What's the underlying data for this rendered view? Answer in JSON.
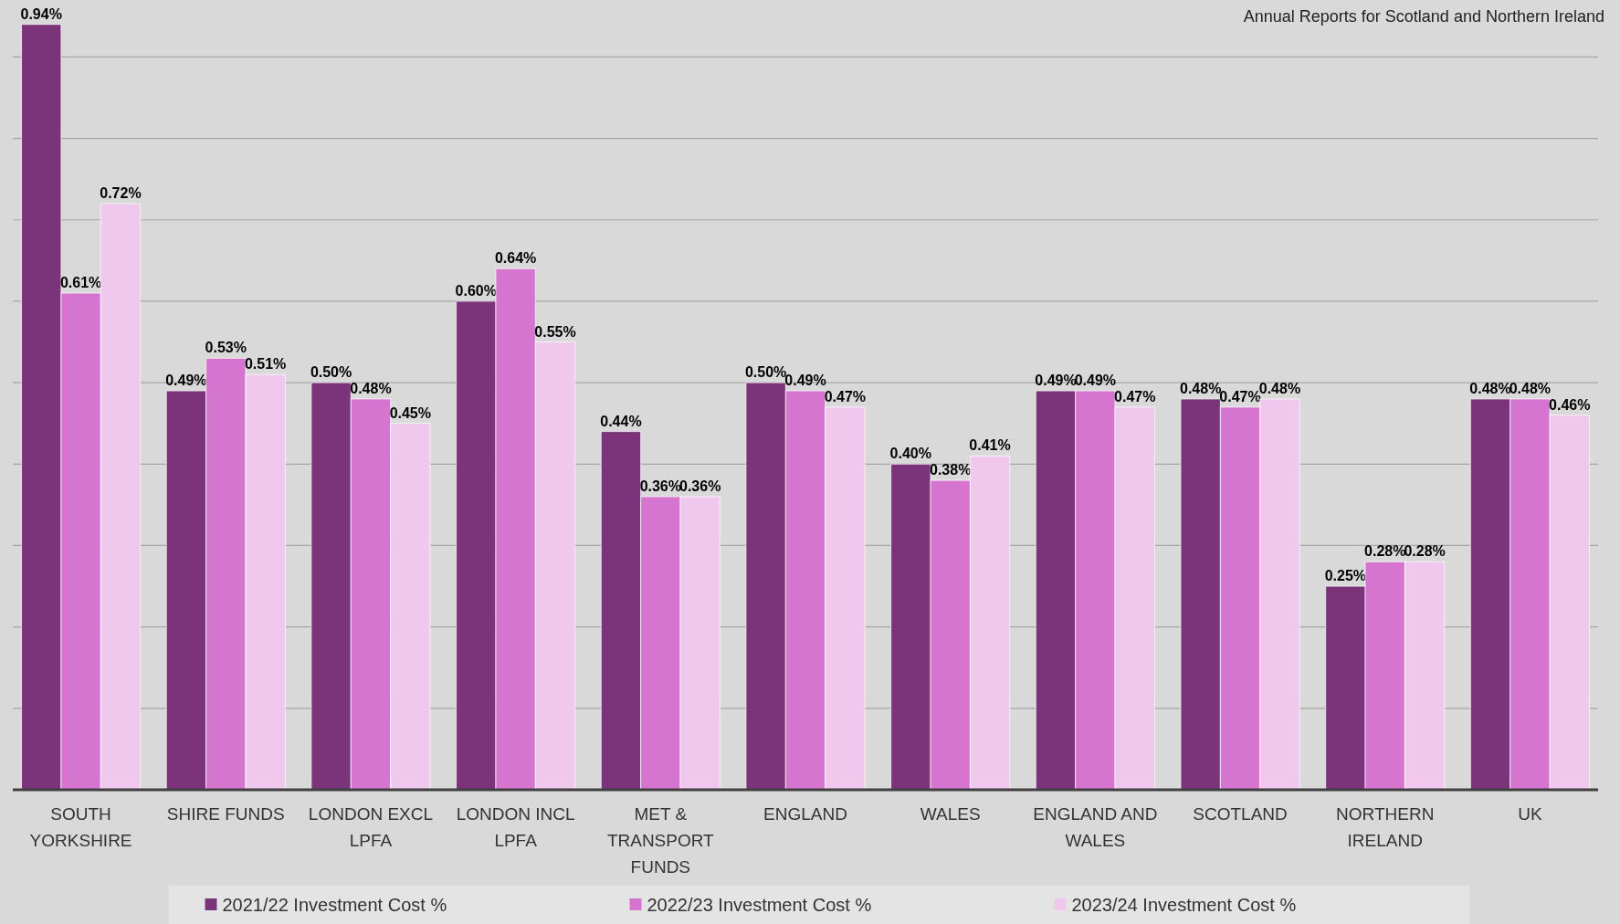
{
  "chart_data": {
    "type": "bar",
    "subtitle": "Annual Reports for Scotland and Northern Ireland",
    "categories": [
      "SOUTH YORKSHIRE",
      "SHIRE FUNDS",
      "LONDON EXCL LPFA",
      "LONDON INCL LPFA",
      "MET & TRANSPORT FUNDS",
      "ENGLAND",
      "WALES",
      "ENGLAND AND WALES",
      "SCOTLAND",
      "NORTHERN IRELAND",
      "UK"
    ],
    "series": [
      {
        "name": "2021/22 Investment Cost %",
        "color": "#7b337a",
        "values": [
          0.94,
          0.49,
          0.5,
          0.6,
          0.44,
          0.5,
          0.4,
          0.49,
          0.48,
          0.25,
          0.48
        ],
        "value_labels": [
          "0.94%",
          "0.49%",
          "0.50%",
          "0.60%",
          "0.44%",
          "0.50%",
          "0.40%",
          "0.49%",
          "0.48%",
          "0.25%",
          "0.48%"
        ]
      },
      {
        "name": "2022/23 Investment Cost %",
        "color": "#d675cf",
        "values": [
          0.61,
          0.53,
          0.48,
          0.64,
          0.36,
          0.49,
          0.38,
          0.49,
          0.47,
          0.28,
          0.48
        ],
        "value_labels": [
          "0.61%",
          "0.53%",
          "0.48%",
          "0.64%",
          "0.36%",
          "0.49%",
          "0.38%",
          "0.49%",
          "0.47%",
          "0.28%",
          "0.48%"
        ]
      },
      {
        "name": "2023/24 Investment Cost %",
        "color": "#f0c8ee",
        "values": [
          0.72,
          0.51,
          0.45,
          0.55,
          0.36,
          0.47,
          0.41,
          0.47,
          0.48,
          0.28,
          0.46
        ],
        "value_labels": [
          "0.72%",
          "0.51%",
          "0.45%",
          "0.55%",
          "0.36%",
          "0.47%",
          "0.41%",
          "0.47%",
          "0.48%",
          "0.28%",
          "0.46%"
        ]
      }
    ],
    "ylim": [
      0,
      0.97
    ],
    "yticks": [
      {
        "value": 0.1,
        "label": null
      },
      {
        "value": 0.2,
        "label": null
      },
      {
        "value": 0.3,
        "label": null
      },
      {
        "value": 0.4,
        "label": null
      },
      {
        "value": 0.5,
        "label": null
      },
      {
        "value": 0.6,
        "label": null
      },
      {
        "value": 0.7,
        "label": null
      },
      {
        "value": 0.8,
        "label": null
      },
      {
        "value": 0.9,
        "label": null
      }
    ],
    "tick_labels": "x",
    "grid": "y",
    "legend": "bottom"
  }
}
